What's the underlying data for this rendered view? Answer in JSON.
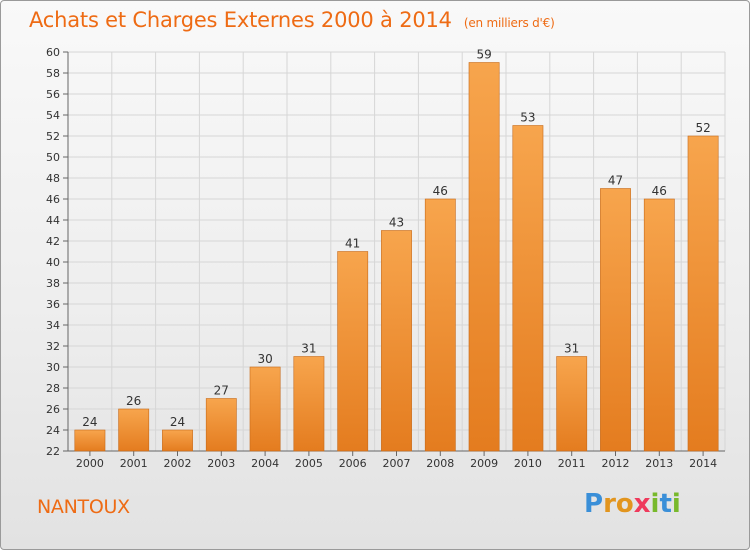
{
  "header": {
    "title": "Achats et Charges Externes 2000 à 2014",
    "subtitle": "(en milliers d'€)"
  },
  "footer": {
    "commune": "NANTOUX",
    "logo_letters": [
      {
        "ch": "P",
        "color": "#3a8fd8"
      },
      {
        "ch": "r",
        "color": "#e2951e"
      },
      {
        "ch": "o",
        "color": "#e2951e"
      },
      {
        "ch": "x",
        "color": "#ef3a5c"
      },
      {
        "ch": "i",
        "color": "#78b92c"
      },
      {
        "ch": "t",
        "color": "#3a8fd8"
      },
      {
        "ch": "i",
        "color": "#78b92c"
      }
    ]
  },
  "colors": {
    "bar_top": "#f7a54d",
    "bar_bottom": "#e47c1f",
    "bar_edge": "#c66a1a",
    "title": "#ee6b14"
  },
  "chart_data": {
    "type": "bar",
    "categories": [
      "2000",
      "2001",
      "2002",
      "2003",
      "2004",
      "2005",
      "2006",
      "2007",
      "2008",
      "2009",
      "2010",
      "2011",
      "2012",
      "2013",
      "2014"
    ],
    "values": [
      24,
      26,
      24,
      27,
      30,
      31,
      41,
      43,
      46,
      59,
      53,
      31,
      47,
      46,
      52
    ],
    "ylim": [
      22,
      60
    ],
    "ytick_step": 2,
    "grid": true,
    "title": "Achats et Charges Externes 2000 à 2014",
    "xlabel": "",
    "ylabel": ""
  }
}
